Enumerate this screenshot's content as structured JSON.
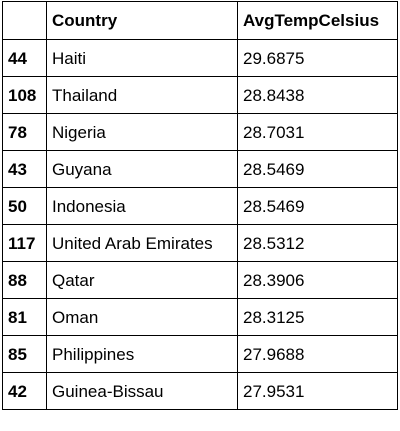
{
  "table": {
    "headers": {
      "index": "",
      "country": "Country",
      "avg_temp": "AvgTempCelsius"
    },
    "rows": [
      {
        "index": "44",
        "country": "Haiti",
        "avg_temp": "29.6875"
      },
      {
        "index": "108",
        "country": "Thailand",
        "avg_temp": "28.8438"
      },
      {
        "index": "78",
        "country": "Nigeria",
        "avg_temp": "28.7031"
      },
      {
        "index": "43",
        "country": "Guyana",
        "avg_temp": "28.5469"
      },
      {
        "index": "50",
        "country": "Indonesia",
        "avg_temp": "28.5469"
      },
      {
        "index": "117",
        "country": "United Arab Emirates",
        "avg_temp": "28.5312"
      },
      {
        "index": "88",
        "country": "Qatar",
        "avg_temp": "28.3906"
      },
      {
        "index": "81",
        "country": "Oman",
        "avg_temp": "28.3125"
      },
      {
        "index": "85",
        "country": "Philippines",
        "avg_temp": "27.9688"
      },
      {
        "index": "42",
        "country": "Guinea-Bissau",
        "avg_temp": "27.9531"
      }
    ]
  }
}
